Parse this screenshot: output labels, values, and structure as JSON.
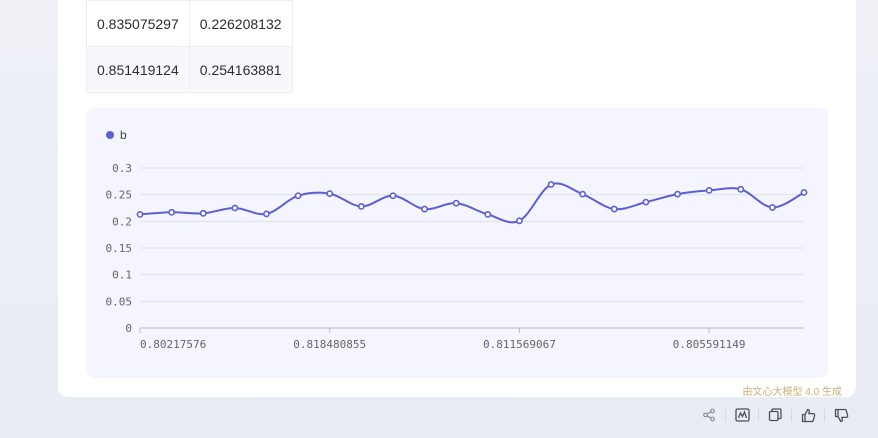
{
  "table": {
    "rows": [
      [
        "0.835075297",
        "0.226208132"
      ],
      [
        "0.851419124",
        "0.254163881"
      ]
    ]
  },
  "legend": {
    "label": "b",
    "color": "#5b5fd6"
  },
  "footer": {
    "badge": "由文心大模型 4.0 生成"
  },
  "actions": [
    "share-icon",
    "chart-icon",
    "copy-icon",
    "thumbs-up-icon",
    "thumbs-down-icon"
  ],
  "chart_data": {
    "type": "line",
    "series": [
      {
        "name": "b",
        "color": "#5b5fd6",
        "values": [
          0.213,
          0.217,
          0.215,
          0.225,
          0.214,
          0.248,
          0.252,
          0.228,
          0.248,
          0.223,
          0.234,
          0.213,
          0.201,
          0.269,
          0.251,
          0.223,
          0.236,
          0.251,
          0.258,
          0.26,
          0.226,
          0.254
        ]
      }
    ],
    "x_tick_labels": [
      {
        "index": 0,
        "label": "0.80217576"
      },
      {
        "index": 6,
        "label": "0.818480855"
      },
      {
        "index": 12,
        "label": "0.811569067"
      },
      {
        "index": 18,
        "label": "0.805591149"
      }
    ],
    "y_ticks": [
      "0",
      "0.05",
      "0.1",
      "0.15",
      "0.2",
      "0.25",
      "0.3"
    ],
    "ylim": [
      0,
      0.3
    ],
    "grid": true,
    "legend": "top-left"
  }
}
